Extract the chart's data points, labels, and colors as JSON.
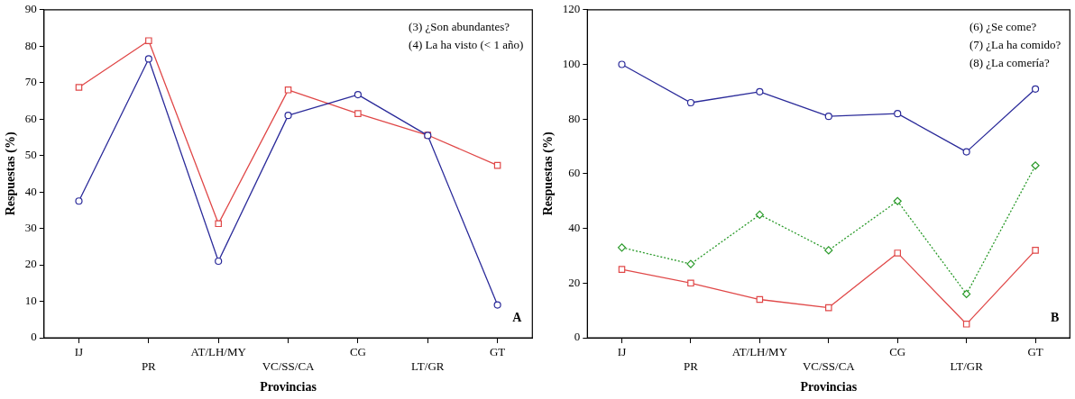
{
  "chart_data": [
    {
      "type": "line",
      "xlabel": "Provincias",
      "ylabel": "Respuestas (%)",
      "categories": [
        "IJ",
        "PR",
        "AT/LH/MY",
        "VC/SS/CA",
        "CG",
        "LT/GR",
        "GT"
      ],
      "ylim": [
        0,
        90
      ],
      "yticks": [
        0,
        10,
        20,
        30,
        40,
        50,
        60,
        70,
        80,
        90
      ],
      "grid": false,
      "legend": false,
      "series": [
        {
          "color": "#2b2b9a",
          "marker": "circle",
          "line_style": "solid",
          "values": [
            37.5,
            76.5,
            21,
            61,
            66.7,
            55.5,
            9
          ]
        },
        {
          "color": "#e04848",
          "marker": "square",
          "line_style": "solid",
          "values": [
            68.7,
            81.5,
            31.3,
            68,
            61.5,
            55.6,
            47.3
          ]
        }
      ],
      "annotations": [
        "(3) ¿Son abundantes?",
        "(4) La ha visto (< 1 año)",
        "A"
      ]
    },
    {
      "type": "line",
      "xlabel": "Provincias",
      "ylabel": "Respuestas (%)",
      "categories": [
        "IJ",
        "PR",
        "AT/LH/MY",
        "VC/SS/CA",
        "CG",
        "LT/GR",
        "GT"
      ],
      "ylim": [
        0,
        120
      ],
      "yticks": [
        0,
        20,
        40,
        60,
        80,
        100,
        120
      ],
      "grid": false,
      "legend": false,
      "series": [
        {
          "color": "#2b2b9a",
          "marker": "circle",
          "line_style": "solid",
          "values": [
            100,
            86,
            90,
            81,
            82,
            68,
            91
          ]
        },
        {
          "color": "#2a9a2a",
          "marker": "diamond",
          "line_style": "dotted",
          "values": [
            33,
            27,
            45,
            32,
            50,
            16,
            63
          ]
        },
        {
          "color": "#e04848",
          "marker": "square",
          "line_style": "solid",
          "values": [
            25,
            20,
            14,
            11,
            31,
            5,
            32
          ]
        }
      ],
      "annotations": [
        "(6) ¿Se come?",
        "(7) ¿La ha comido?",
        "(8) ¿La comería?",
        "B"
      ]
    }
  ]
}
